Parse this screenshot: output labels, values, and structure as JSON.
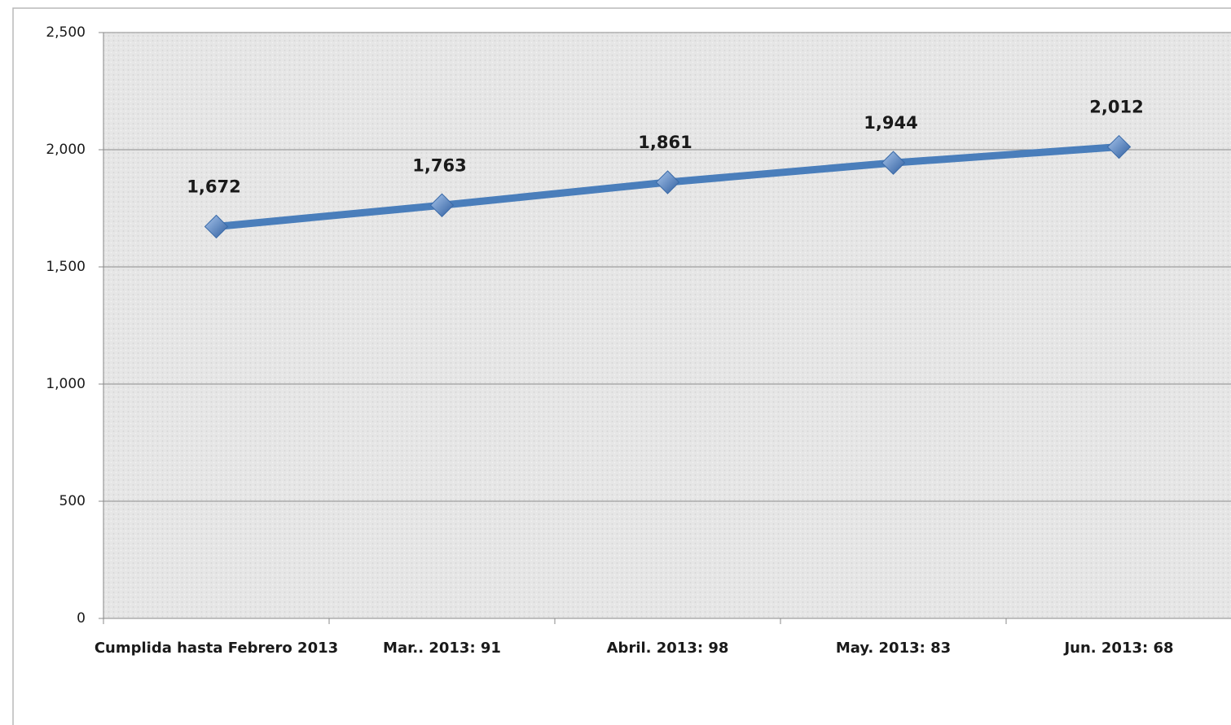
{
  "chart_data": {
    "type": "line",
    "categories": [
      "Cumplida hasta Febrero 2013",
      "Mar.. 2013: 91",
      "Abril. 2013: 98",
      "May. 2013: 83",
      "Jun. 2013: 68"
    ],
    "series": [
      {
        "color": "#4a7ebb",
        "values": [
          1672,
          1763,
          1861,
          1944,
          2012
        ],
        "value_labels": [
          "1,672",
          "1,763",
          "1,861",
          "1,944",
          "2,012"
        ]
      }
    ],
    "ylim": [
      0,
      2500
    ],
    "yticks": [
      0,
      {
        "value": 500,
        "label": "500"
      },
      {
        "value": 1000,
        "label": "1,000"
      },
      {
        "value": 1500,
        "label": "1,500"
      },
      {
        "value": 2000,
        "label": "2,000"
      },
      {
        "value": 2500,
        "label": "2,500"
      }
    ],
    "grid": true
  }
}
